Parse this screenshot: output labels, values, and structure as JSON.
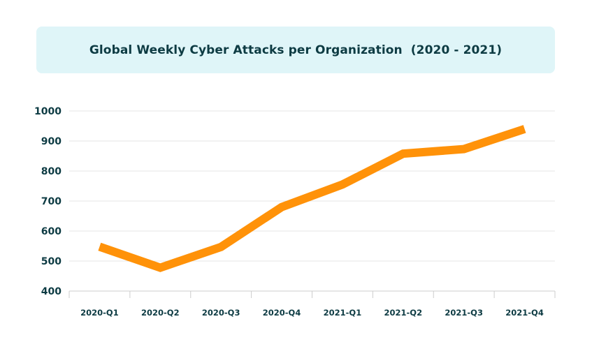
{
  "colors": {
    "title_background": "#dff5f8",
    "text": "#0d3b43",
    "gridline": "#e6e6e6",
    "axis": "#cccccc",
    "series_line": "#ff9209"
  },
  "chart_data": {
    "type": "line",
    "title": "Global Weekly Cyber Attacks per Organization  (2020 - 2021)",
    "xlabel": "",
    "ylabel": "",
    "categories": [
      "2020-Q1",
      "2020-Q2",
      "2020-Q3",
      "2020-Q4",
      "2021-Q1",
      "2021-Q2",
      "2021-Q3",
      "2021-Q4"
    ],
    "series": [
      {
        "values": [
          548,
          478,
          547,
          680,
          755,
          858,
          873,
          940
        ]
      }
    ],
    "ylim": [
      400,
      1000
    ],
    "yticks": [
      400,
      500,
      600,
      700,
      800,
      900,
      1000
    ],
    "grid": true,
    "legend": "none"
  }
}
